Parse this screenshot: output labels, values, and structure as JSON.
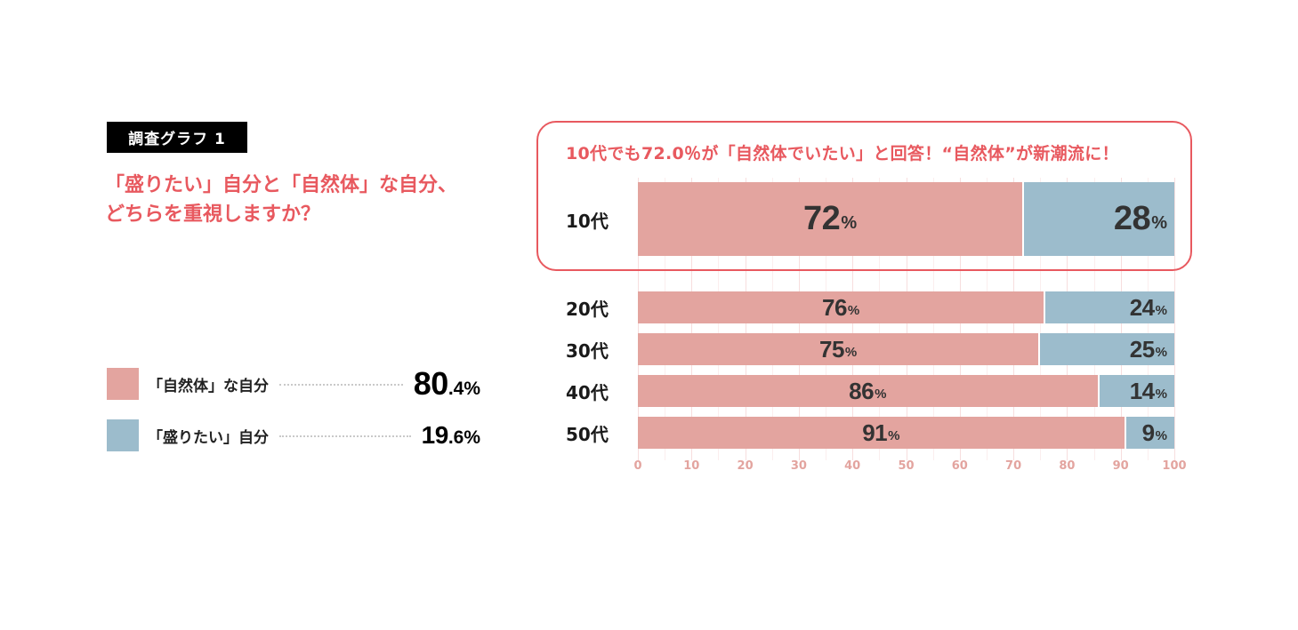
{
  "tag": "調査グラフ 1",
  "question": {
    "line1": "「盛りたい」自分と「自然体」な自分、",
    "line2": "どちらを重視しますか？"
  },
  "legend": [
    {
      "label": "「自然体」な自分",
      "value_int": "80",
      "value_dec": ".4%",
      "color": "#e3a49f"
    },
    {
      "label": "「盛りたい」自分",
      "value_int": "19",
      "value_dec": ".6%",
      "color": "#9cbccc"
    }
  ],
  "headline": "10代でも72.0％が「自然体でいたい」と回答！“自然体”が新潮流に！",
  "rows": [
    {
      "label": "10代",
      "natural": "72",
      "natural_pct": "%",
      "dressed": "28",
      "dressed_pct": "%"
    },
    {
      "label": "20代",
      "natural": "76",
      "natural_pct": "%",
      "dressed": "24",
      "dressed_pct": "%"
    },
    {
      "label": "30代",
      "natural": "75",
      "natural_pct": "%",
      "dressed": "25",
      "dressed_pct": "%"
    },
    {
      "label": "40代",
      "natural": "86",
      "natural_pct": "%",
      "dressed": "14",
      "dressed_pct": "%"
    },
    {
      "label": "50代",
      "natural": "91",
      "natural_pct": "%",
      "dressed": "9",
      "dressed_pct": "%"
    }
  ],
  "axis_ticks": [
    "0",
    "10",
    "20",
    "30",
    "40",
    "50",
    "60",
    "70",
    "80",
    "90",
    "100"
  ],
  "colors": {
    "accent": "#e8595f",
    "natural": "#e3a49f",
    "dressed": "#9cbccc"
  },
  "chart_data": {
    "type": "bar",
    "orientation": "horizontal",
    "stacked": true,
    "title": "「盛りたい」自分と「自然体」な自分、どちらを重視しますか？",
    "subtitle": "10代でも72.0％が「自然体でいたい」と回答！“自然体”が新潮流に！",
    "categories": [
      "10代",
      "20代",
      "30代",
      "40代",
      "50代"
    ],
    "series": [
      {
        "name": "「自然体」な自分",
        "values": [
          72,
          76,
          75,
          86,
          91
        ],
        "color": "#e3a49f"
      },
      {
        "name": "「盛りたい」自分",
        "values": [
          28,
          24,
          25,
          14,
          9
        ],
        "color": "#9cbccc"
      }
    ],
    "overall": [
      {
        "name": "「自然体」な自分",
        "value": 80.4
      },
      {
        "name": "「盛りたい」自分",
        "value": 19.6
      }
    ],
    "xlabel": "",
    "ylabel": "",
    "xlim": [
      0,
      100
    ],
    "xticks": [
      0,
      10,
      20,
      30,
      40,
      50,
      60,
      70,
      80,
      90,
      100
    ],
    "grid": true,
    "legend_position": "left"
  }
}
